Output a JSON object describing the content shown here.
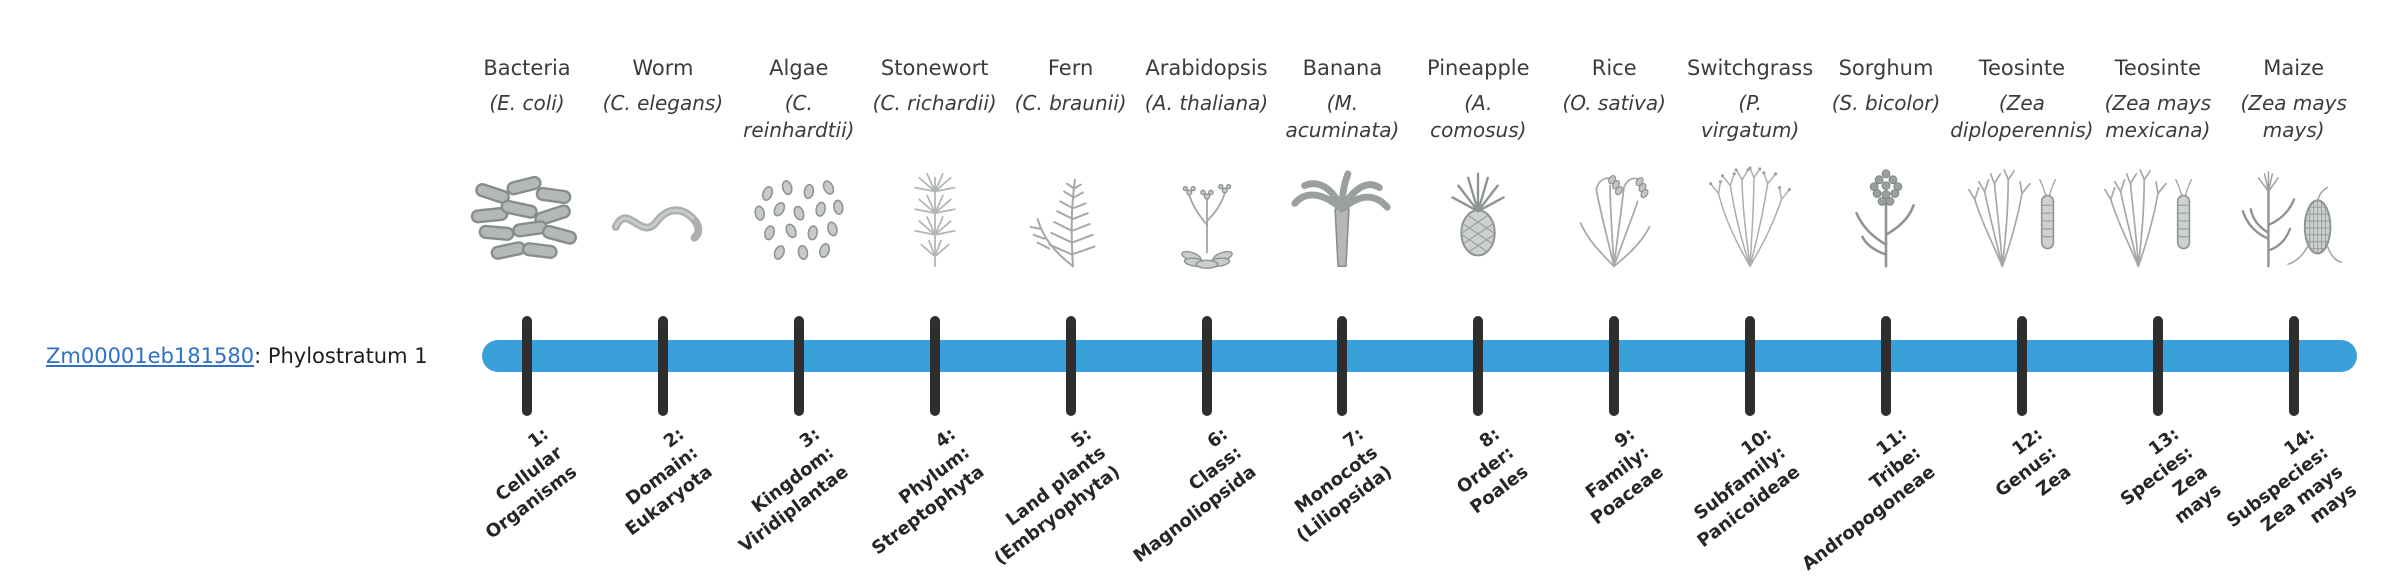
{
  "gene": {
    "id": "Zm00001eb181580",
    "suffix": ": Phylostratum 1",
    "link_color": "#2e6fc7"
  },
  "timeline": {
    "bar_color": "#3aa0dc",
    "tick_color": "#2e2e2e",
    "phylostratum_count": 14
  },
  "organisms": [
    {
      "common": "Bacteria",
      "sci_lines": [
        "(E. coli)"
      ],
      "icon": "bacteria-icon",
      "stratum_lines": [
        "1:",
        "Cellular",
        "Organisms"
      ]
    },
    {
      "common": "Worm",
      "sci_lines": [
        "(C. elegans)"
      ],
      "icon": "worm-icon",
      "stratum_lines": [
        "2:",
        "Domain:",
        "Eukaryota"
      ]
    },
    {
      "common": "Algae",
      "sci_lines": [
        "(C.",
        "reinhardtii)"
      ],
      "icon": "algae-icon",
      "stratum_lines": [
        "3:",
        "Kingdom:",
        "Viridiplantae"
      ]
    },
    {
      "common": "Stonewort",
      "sci_lines": [
        "(C. richardii)"
      ],
      "icon": "stonewort-icon",
      "stratum_lines": [
        "4:",
        "Phylum:",
        "Streptophyta"
      ]
    },
    {
      "common": "Fern",
      "sci_lines": [
        "(C. braunii)"
      ],
      "icon": "fern-icon",
      "stratum_lines": [
        "5:",
        "Land plants",
        "(Embryophyta)"
      ]
    },
    {
      "common": "Arabidopsis",
      "sci_lines": [
        "(A. thaliana)"
      ],
      "icon": "arabidopsis-icon",
      "stratum_lines": [
        "6:",
        "Class:",
        "Magnoliopsida"
      ]
    },
    {
      "common": "Banana",
      "sci_lines": [
        "(M.",
        "acuminata)"
      ],
      "icon": "banana-icon",
      "stratum_lines": [
        "7:",
        "Monocots",
        "(Liliopsida)"
      ]
    },
    {
      "common": "Pineapple",
      "sci_lines": [
        "(A.",
        "comosus)"
      ],
      "icon": "pineapple-icon",
      "stratum_lines": [
        "8:",
        "Order:",
        "Poales"
      ]
    },
    {
      "common": "Rice",
      "sci_lines": [
        "(O. sativa)"
      ],
      "icon": "rice-icon",
      "stratum_lines": [
        "9:",
        "Family:",
        "Poaceae"
      ]
    },
    {
      "common": "Switchgrass",
      "sci_lines": [
        "(P.",
        "virgatum)"
      ],
      "icon": "switchgrass-icon",
      "stratum_lines": [
        "10:",
        "Subfamily:",
        "Panicoideae"
      ]
    },
    {
      "common": "Sorghum",
      "sci_lines": [
        "(S. bicolor)"
      ],
      "icon": "sorghum-icon",
      "stratum_lines": [
        "11:",
        "Tribe:",
        "Andropogoneae"
      ]
    },
    {
      "common": "Teosinte",
      "sci_lines": [
        "(Zea",
        "diploperennis)"
      ],
      "icon": "teosinte-diploperennis-icon",
      "stratum_lines": [
        "12:",
        "Genus:",
        "Zea"
      ]
    },
    {
      "common": "Teosinte",
      "sci_lines": [
        "(Zea mays",
        "mexicana)"
      ],
      "icon": "teosinte-mexicana-icon",
      "stratum_lines": [
        "13:",
        "Species:",
        "Zea",
        "mays"
      ]
    },
    {
      "common": "Maize",
      "sci_lines": [
        "(Zea mays",
        "mays)"
      ],
      "icon": "maize-icon",
      "stratum_lines": [
        "14:",
        "Subspecies:",
        "Zea mays",
        "mays"
      ]
    }
  ]
}
